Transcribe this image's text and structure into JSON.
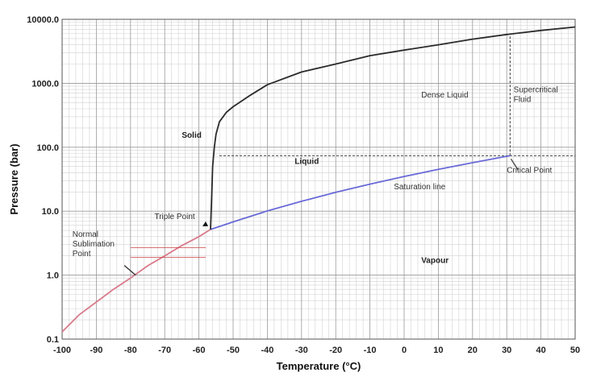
{
  "colors": {
    "melting_line": "#2a2a2a",
    "saturation_line": "#6a6ad8",
    "sublimation_line": "#d97a8a",
    "grid_major": "#9a9a9a",
    "grid_minor": "#d2d2d2",
    "boundary_dashed": "#555555"
  },
  "chart_data": {
    "type": "line",
    "xlabel": "Temperature (°C)",
    "ylabel": "Pressure (bar)",
    "xlim": [
      -100,
      50
    ],
    "ylim": [
      0.1,
      10000
    ],
    "yscale": "log",
    "grid": true,
    "x_ticks": [
      -100,
      -90,
      -80,
      -70,
      -60,
      -50,
      -40,
      -30,
      -20,
      -10,
      0,
      10,
      20,
      30,
      40,
      50
    ],
    "x_tick_labels": [
      "-100",
      "-90",
      "-80",
      "-70",
      "-60",
      "-50",
      "-40",
      "-30",
      "-20",
      "-10",
      "0",
      "10",
      "20",
      "30",
      "40",
      "50"
    ],
    "y_ticks": [
      0.1,
      1,
      10,
      100,
      1000,
      10000
    ],
    "y_tick_labels": [
      "0.1",
      "1.0",
      "10.0",
      "100.0",
      "1000.0",
      "10000.0"
    ],
    "series": [
      {
        "key": "sublimation",
        "x": [
          -100,
          -95,
          -90,
          -85,
          -80,
          -75,
          -70,
          -65,
          -60,
          -56.6
        ],
        "y": [
          0.13,
          0.24,
          0.38,
          0.6,
          0.9,
          1.4,
          2.0,
          2.9,
          4.0,
          5.18
        ]
      },
      {
        "key": "saturation",
        "x": [
          -56.6,
          -50,
          -40,
          -30,
          -20,
          -10,
          0,
          10,
          20,
          31
        ],
        "y": [
          5.18,
          6.8,
          10.1,
          14.3,
          19.7,
          26.5,
          34.9,
          45.0,
          57.3,
          73.8
        ]
      },
      {
        "key": "melting",
        "x": [
          -56.6,
          -56.3,
          -56.0,
          -55.5,
          -55.0,
          -54.0,
          -52.0,
          -50.0,
          -45.0,
          -40.0,
          -30.0,
          -20.0,
          -10.0,
          0.0,
          10.0,
          20.0,
          30.0,
          40.0,
          50.0
        ],
        "y": [
          5.18,
          15.0,
          50.0,
          100.0,
          160.0,
          250.0,
          350.0,
          430.0,
          650.0,
          950.0,
          1500.0,
          2000.0,
          2700.0,
          3300.0,
          4000.0,
          4900.0,
          5800.0,
          6700.0,
          7600.0
        ]
      }
    ],
    "boundaries": [
      {
        "key": "critical_pressure",
        "x": [
          -54,
          50
        ],
        "y": [
          73.8,
          73.8
        ]
      },
      {
        "key": "critical_temperature",
        "x": [
          31,
          31
        ],
        "y": [
          73.8,
          5800
        ]
      }
    ],
    "annotations": [
      {
        "key": "solid",
        "text": "Solid",
        "x": -65,
        "y": 140,
        "bold": true
      },
      {
        "key": "dense_liquid",
        "text": "Dense Liquid",
        "x": 5,
        "y": 600,
        "bold": false
      },
      {
        "key": "supercritical",
        "lines": [
          "Supercritical",
          "Fluid"
        ],
        "x": 32,
        "y": 720,
        "bold": false
      },
      {
        "key": "liquid",
        "text": "Liquid",
        "x": -32,
        "y": 55,
        "bold": true
      },
      {
        "key": "saturation_line",
        "text": "Saturation line",
        "x": -3,
        "y": 22,
        "bold": false
      },
      {
        "key": "vapour",
        "text": "Vapour",
        "x": 5,
        "y": 1.55,
        "bold": true
      },
      {
        "key": "triple_point",
        "text": "Triple Point",
        "x": -73,
        "y": 7.5,
        "bold": false
      },
      {
        "key": "critical_point",
        "text": "Critical Point",
        "x": 30,
        "y": 40,
        "bold": false
      },
      {
        "key": "normal_sublimation",
        "lines": [
          "Normal",
          "Sublimation",
          "Point"
        ],
        "x": -97,
        "y": 4.0,
        "bold": false
      }
    ]
  }
}
